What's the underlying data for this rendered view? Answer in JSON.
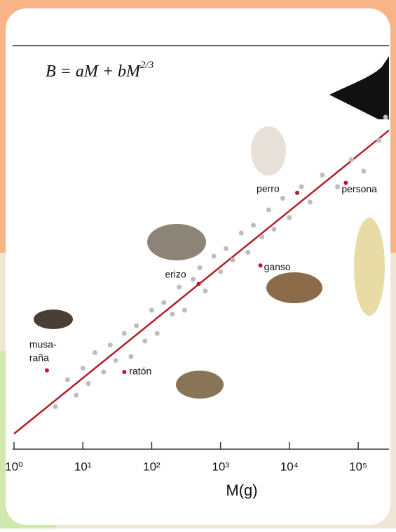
{
  "chart_data": {
    "type": "scatter",
    "title_parts": [
      "B = aM + bM",
      "2/3"
    ],
    "xlabel": "M(g)",
    "xscale": "log",
    "xlim": [
      1,
      280000
    ],
    "ylim": [
      0,
      5.2
    ],
    "xticks": [
      {
        "value": 1,
        "label": "10⁰"
      },
      {
        "value": 10,
        "label": "10¹"
      },
      {
        "value": 100,
        "label": "10²"
      },
      {
        "value": 1000,
        "label": "10³"
      },
      {
        "value": 10000,
        "label": "10⁴"
      },
      {
        "value": 100000,
        "label": "10⁵"
      }
    ],
    "series": [
      {
        "color": "#bdbdbd",
        "x": [
          4,
          6,
          8,
          10,
          12,
          15,
          20,
          25,
          30,
          40,
          50,
          60,
          80,
          100,
          120,
          150,
          200,
          250,
          300,
          400,
          500,
          600,
          800,
          1000,
          1200,
          1500,
          2000,
          2500,
          3000,
          4000,
          5000,
          6000,
          8000,
          10000,
          15000,
          20000,
          30000,
          50000,
          80000,
          120000,
          200000,
          250000
        ],
        "values": [
          0.55,
          0.9,
          0.7,
          1.05,
          0.85,
          1.25,
          1.0,
          1.35,
          1.15,
          1.5,
          1.2,
          1.6,
          1.4,
          1.8,
          1.5,
          1.9,
          1.75,
          2.1,
          1.8,
          2.2,
          2.35,
          2.05,
          2.5,
          2.3,
          2.6,
          2.45,
          2.8,
          2.55,
          2.9,
          2.75,
          3.1,
          2.85,
          3.25,
          3.0,
          3.4,
          3.2,
          3.55,
          3.4,
          3.75,
          3.6,
          4.0,
          4.3
        ]
      },
      {
        "color": "#c0182b",
        "x": [
          3,
          40,
          480,
          3800,
          13000,
          66000
        ],
        "values": [
          1.02,
          1.0,
          2.14,
          2.38,
          3.32,
          3.45
        ],
        "labels": [
          [
            "musa-",
            "raña"
          ],
          [
            "ratón"
          ],
          [
            "erizo"
          ],
          [
            "ganso"
          ],
          [
            "perro"
          ],
          [
            "persona"
          ]
        ]
      }
    ],
    "fit_line": {
      "color": "#b01e2b",
      "x": [
        1,
        280000
      ],
      "values": [
        0.2,
        4.13
      ]
    }
  }
}
